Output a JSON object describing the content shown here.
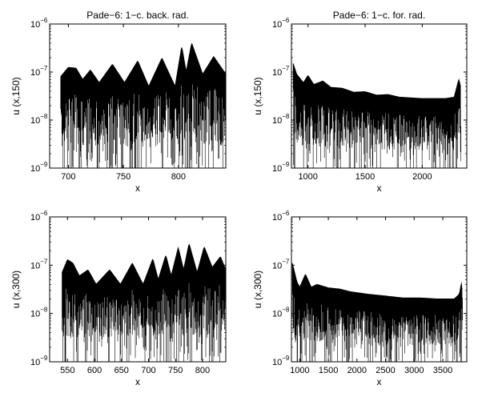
{
  "chart_data": [
    {
      "type": "line",
      "title": "Pade−6: 1−c. back. rad.",
      "xlabel": "x",
      "ylabel": "u (x,150)",
      "yscale": "log",
      "xlim": [
        683,
        843
      ],
      "ylim": [
        1e-09,
        1e-06
      ],
      "xticks": [
        700,
        750,
        800
      ],
      "yticks": [
        {
          "base": "10",
          "exp": "−9"
        },
        {
          "base": "10",
          "exp": "−8"
        },
        {
          "base": "10",
          "exp": "−7"
        },
        {
          "base": "10",
          "exp": "−6"
        }
      ],
      "grid": false,
      "signal": "dense oscillations under a modulated envelope",
      "start_x": 693,
      "end_x": 843,
      "envelope": [
        [
          693,
          8e-08
        ],
        [
          700,
          1.25e-07
        ],
        [
          707,
          1.2e-07
        ],
        [
          713,
          7e-08
        ],
        [
          720,
          1.1e-07
        ],
        [
          728,
          6e-08
        ],
        [
          740,
          1.45e-07
        ],
        [
          751,
          6e-08
        ],
        [
          763,
          1.7e-07
        ],
        [
          773,
          5e-08
        ],
        [
          785,
          1.95e-07
        ],
        [
          797,
          5e-08
        ],
        [
          803,
          3.4e-07
        ],
        [
          807,
          1e-07
        ],
        [
          812,
          4e-07
        ],
        [
          822,
          9e-08
        ],
        [
          832,
          2.1e-07
        ],
        [
          843,
          9e-08
        ]
      ]
    },
    {
      "type": "line",
      "title": "Pade−6: 1−c. for. rad.",
      "xlabel": "x",
      "ylabel": "u (x,150)",
      "yscale": "log",
      "xlim": [
        855,
        2390
      ],
      "ylim": [
        1e-09,
        1e-06
      ],
      "xticks": [
        1000,
        1500,
        2000
      ],
      "yticks": [
        {
          "base": "10",
          "exp": "−9"
        },
        {
          "base": "10",
          "exp": "−8"
        },
        {
          "base": "10",
          "exp": "−7"
        },
        {
          "base": "10",
          "exp": "−6"
        }
      ],
      "grid": false,
      "signal": "dense oscillations under a modulated envelope",
      "start_x": 870,
      "end_x": 2340,
      "envelope": [
        [
          870,
          1.5e-07
        ],
        [
          900,
          9e-08
        ],
        [
          960,
          6e-08
        ],
        [
          1000,
          8.5e-08
        ],
        [
          1050,
          5.5e-08
        ],
        [
          1130,
          6.5e-08
        ],
        [
          1200,
          4.8e-08
        ],
        [
          1300,
          4.6e-08
        ],
        [
          1400,
          3.8e-08
        ],
        [
          1500,
          3.9e-08
        ],
        [
          1600,
          3.3e-08
        ],
        [
          1700,
          3.4e-08
        ],
        [
          1800,
          3e-08
        ],
        [
          2000,
          2.8e-08
        ],
        [
          2200,
          2.8e-08
        ],
        [
          2280,
          3e-08
        ],
        [
          2320,
          7e-08
        ],
        [
          2335,
          5e-08
        ],
        [
          2340,
          3e-09
        ]
      ]
    },
    {
      "type": "line",
      "title": "",
      "xlabel": "x",
      "ylabel": "u (x,300)",
      "yscale": "log",
      "xlim": [
        517,
        843
      ],
      "ylim": [
        1e-09,
        1e-06
      ],
      "xticks": [
        550,
        600,
        650,
        700,
        750,
        800
      ],
      "yticks": [
        {
          "base": "10",
          "exp": "−9"
        },
        {
          "base": "10",
          "exp": "−8"
        },
        {
          "base": "10",
          "exp": "−7"
        },
        {
          "base": "10",
          "exp": "−6"
        }
      ],
      "grid": false,
      "signal": "dense oscillations under a modulated envelope",
      "start_x": 540,
      "end_x": 843,
      "envelope": [
        [
          540,
          7e-08
        ],
        [
          550,
          1.3e-07
        ],
        [
          560,
          1.1e-07
        ],
        [
          572,
          6e-08
        ],
        [
          588,
          8e-08
        ],
        [
          603,
          4e-08
        ],
        [
          628,
          8e-08
        ],
        [
          648,
          4e-08
        ],
        [
          670,
          1.1e-07
        ],
        [
          690,
          4e-08
        ],
        [
          708,
          1.35e-07
        ],
        [
          718,
          5e-08
        ],
        [
          732,
          1.6e-07
        ],
        [
          742,
          6e-08
        ],
        [
          755,
          2.3e-07
        ],
        [
          765,
          8e-08
        ],
        [
          775,
          2.8e-07
        ],
        [
          790,
          7e-08
        ],
        [
          803,
          2.4e-07
        ],
        [
          818,
          9e-08
        ],
        [
          833,
          1.5e-07
        ],
        [
          843,
          8e-08
        ]
      ]
    },
    {
      "type": "line",
      "title": "",
      "xlabel": "x",
      "ylabel": "u (x,300)",
      "yscale": "log",
      "xlim": [
        855,
        3920
      ],
      "ylim": [
        1e-09,
        1e-06
      ],
      "xticks": [
        1000,
        1500,
        2000,
        2500,
        3000,
        3500
      ],
      "yticks": [
        {
          "base": "10",
          "exp": "−9"
        },
        {
          "base": "10",
          "exp": "−8"
        },
        {
          "base": "10",
          "exp": "−7"
        },
        {
          "base": "10",
          "exp": "−6"
        }
      ],
      "grid": false,
      "signal": "dense oscillations under a modulated envelope",
      "start_x": 870,
      "end_x": 3850,
      "envelope": [
        [
          870,
          1.1e-07
        ],
        [
          950,
          4.5e-08
        ],
        [
          1000,
          3.5e-08
        ],
        [
          1100,
          6.5e-08
        ],
        [
          1200,
          3.5e-08
        ],
        [
          1300,
          4e-08
        ],
        [
          1500,
          3.4e-08
        ],
        [
          1700,
          3.2e-08
        ],
        [
          1900,
          2.8e-08
        ],
        [
          2200,
          2.5e-08
        ],
        [
          2500,
          2.3e-08
        ],
        [
          2800,
          2.1e-08
        ],
        [
          3100,
          2.1e-08
        ],
        [
          3400,
          2e-08
        ],
        [
          3700,
          2e-08
        ],
        [
          3790,
          2.5e-08
        ],
        [
          3830,
          4.5e-08
        ],
        [
          3845,
          2e-08
        ],
        [
          3850,
          3e-09
        ]
      ]
    }
  ]
}
